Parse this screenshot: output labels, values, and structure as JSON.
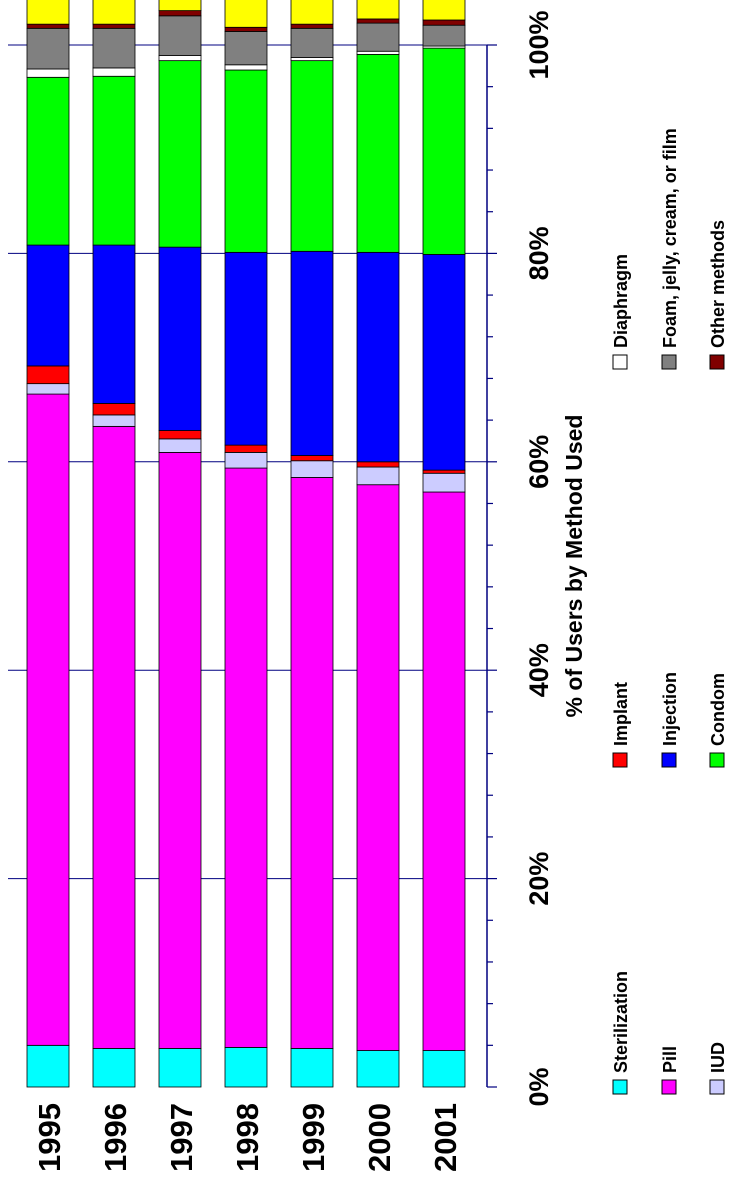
{
  "chart_data": {
    "type": "bar",
    "orientation": "stacked-100-percent",
    "x_title": "% of Users by Method Used",
    "x_ticks": [
      "0%",
      "20%",
      "40%",
      "60%",
      "80%",
      "100%"
    ],
    "xlim": [
      0,
      100
    ],
    "grid": true,
    "legend_position": "bottom",
    "categories": [
      "1995",
      "1996",
      "1997",
      "1998",
      "1999",
      "2000",
      "2001"
    ],
    "series": [
      {
        "name": "Sterilization",
        "color": "#00FFFF",
        "values": [
          4.0,
          3.7,
          3.7,
          3.8,
          3.7,
          3.5,
          3.5
        ]
      },
      {
        "name": "Pill",
        "color": "#FF00FF",
        "values": [
          62.5,
          59.7,
          57.2,
          55.6,
          54.8,
          54.3,
          53.6
        ]
      },
      {
        "name": "IUD",
        "color": "#CCCCFF",
        "values": [
          1.0,
          1.1,
          1.3,
          1.5,
          1.6,
          1.7,
          1.8
        ]
      },
      {
        "name": "Implant",
        "color": "#FF0000",
        "values": [
          1.7,
          1.1,
          0.8,
          0.7,
          0.5,
          0.5,
          0.3
        ]
      },
      {
        "name": "Injection",
        "color": "#0000FF",
        "values": [
          11.6,
          15.2,
          17.6,
          18.5,
          19.6,
          20.1,
          20.7
        ]
      },
      {
        "name": "Condom",
        "color": "#00FF00",
        "values": [
          16.1,
          16.2,
          17.9,
          17.5,
          18.3,
          19.0,
          19.8
        ]
      },
      {
        "name": "Diaphragm",
        "color": "#FFFFFF",
        "values": [
          0.8,
          0.8,
          0.5,
          0.5,
          0.3,
          0.3,
          0.2
        ]
      },
      {
        "name": "Foam, jelly, cream, or film",
        "color": "#808080",
        "values": [
          3.9,
          3.8,
          3.8,
          3.2,
          2.8,
          2.7,
          2.0
        ]
      },
      {
        "name": "Other methods",
        "color": "#800000",
        "values": [
          0.4,
          0.4,
          0.5,
          0.4,
          0.4,
          0.4,
          0.5
        ]
      },
      {
        "name": "",
        "color": "#FFFF00",
        "values": [
          3.0,
          3.0,
          3.2,
          3.3,
          3.2,
          2.5,
          3.1
        ]
      }
    ]
  }
}
